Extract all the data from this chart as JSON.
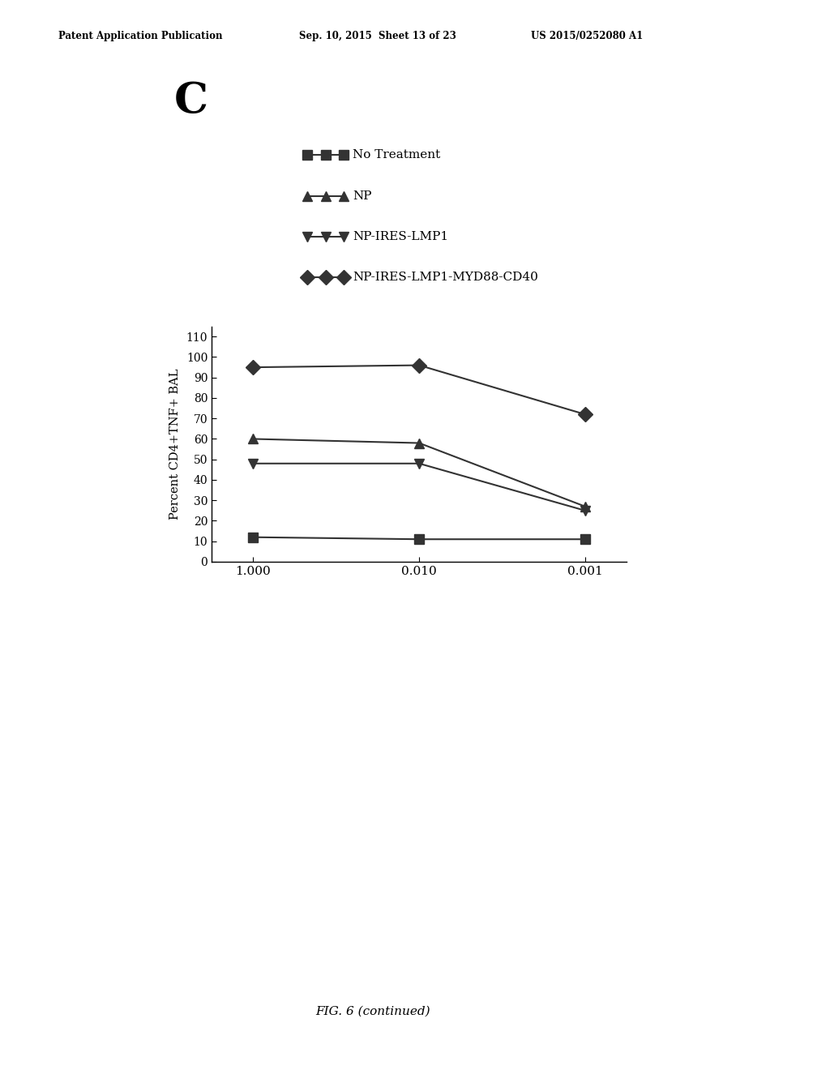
{
  "panel_label": "C",
  "header_left": "Patent Application Publication",
  "header_mid": "Sep. 10, 2015  Sheet 13 of 23",
  "header_right": "US 2015/0252080 A1",
  "footer": "FIG. 6 (continued)",
  "legend_entries": [
    {
      "label": "No Treatment",
      "marker": "s"
    },
    {
      "label": "NP",
      "marker": "^"
    },
    {
      "label": "NP-IRES-LMP1",
      "marker": "v"
    },
    {
      "label": "NP-IRES-LMP1-MYD88-CD40",
      "marker": "D"
    }
  ],
  "x_labels": [
    "1.000",
    "0.010",
    "0.001"
  ],
  "x_values": [
    0,
    1,
    2
  ],
  "series": [
    {
      "name": "No Treatment",
      "marker": "s",
      "values": [
        12,
        11,
        11
      ]
    },
    {
      "name": "NP",
      "marker": "^",
      "values": [
        60,
        58,
        27
      ]
    },
    {
      "name": "NP-IRES-LMP1",
      "marker": "v",
      "values": [
        48,
        48,
        25
      ]
    },
    {
      "name": "NP-IRES-LMP1-MYD88-CD40",
      "marker": "D",
      "values": [
        95,
        96,
        72
      ]
    }
  ],
  "ylabel": "Percent CD4+TNF+ BAL",
  "ylim": [
    0,
    115
  ],
  "yticks": [
    0,
    10,
    20,
    30,
    40,
    50,
    60,
    70,
    80,
    90,
    100,
    110
  ],
  "color": "#333333",
  "linewidth": 1.5,
  "markersize": 9,
  "background_color": "#ffffff"
}
